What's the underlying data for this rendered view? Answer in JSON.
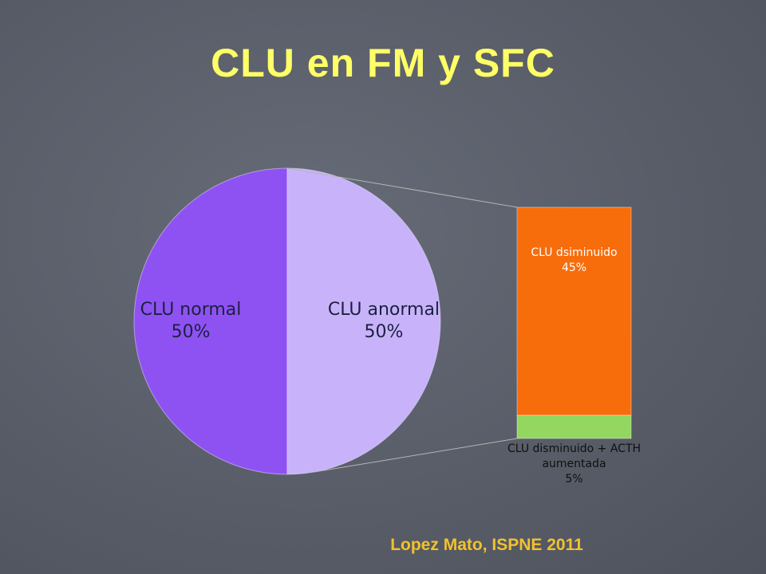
{
  "chart_data": {
    "type": "pie",
    "title": "CLU en FM y SFC",
    "source": "Lopez Mato, ISPNE 2011",
    "categories": [
      "CLU normal",
      "CLU anormal"
    ],
    "values": [
      50,
      50
    ],
    "value_labels": [
      "50%",
      "50%"
    ],
    "colors": [
      "#8f52f2",
      "#c8b3fa"
    ],
    "secondary": {
      "type": "bar",
      "categories": [
        "CLU dsiminuido",
        "CLU disminuido + ACTH aumentada"
      ],
      "values": [
        45,
        5
      ],
      "value_labels": [
        "45%",
        "5%"
      ],
      "colors": [
        "#f76d0c",
        "#93d660"
      ]
    }
  }
}
